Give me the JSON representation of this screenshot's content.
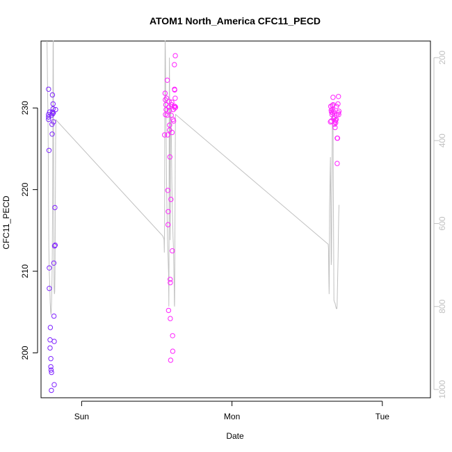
{
  "chart_data": {
    "type": "scatter",
    "title": "ATOM1 North_America CFC11_PECD",
    "xlabel": "Date",
    "ylabel": "CFC11_PECD",
    "x_unit": "days since Sat 00:00",
    "xlim": [
      0.73,
      3.32
    ],
    "ylim": [
      194.5,
      238.2
    ],
    "x_ticks": [
      {
        "value": 1,
        "label": "Sun"
      },
      {
        "value": 2,
        "label": "Mon"
      },
      {
        "value": 3,
        "label": "Tue"
      }
    ],
    "y_ticks": [
      200,
      210,
      220,
      230
    ],
    "y2_label": "",
    "y2_ticks": [
      200,
      400,
      600,
      800,
      1000
    ],
    "y2_lim": [
      1020,
      160
    ],
    "colors": {
      "early": "#7a22ff",
      "late": "#ff22ff",
      "line": "#c0c0c0",
      "axis": "#000000",
      "axis2": "#c0c0c0"
    },
    "points": [
      {
        "x": 0.78,
        "y": 232.3
      },
      {
        "x": 0.78,
        "y": 229.2
      },
      {
        "x": 0.78,
        "y": 228.6
      },
      {
        "x": 0.78,
        "y": 228.9
      },
      {
        "x": 0.783,
        "y": 224.8
      },
      {
        "x": 0.785,
        "y": 210.4
      },
      {
        "x": 0.785,
        "y": 207.9
      },
      {
        "x": 0.787,
        "y": 229.5
      },
      {
        "x": 0.79,
        "y": 201.6
      },
      {
        "x": 0.79,
        "y": 200.6
      },
      {
        "x": 0.792,
        "y": 203.1
      },
      {
        "x": 0.795,
        "y": 199.3
      },
      {
        "x": 0.795,
        "y": 198.3
      },
      {
        "x": 0.797,
        "y": 197.9
      },
      {
        "x": 0.799,
        "y": 195.4
      },
      {
        "x": 0.8,
        "y": 197.6
      },
      {
        "x": 0.8,
        "y": 229.1
      },
      {
        "x": 0.803,
        "y": 228.0
      },
      {
        "x": 0.804,
        "y": 226.8
      },
      {
        "x": 0.806,
        "y": 229.5
      },
      {
        "x": 0.806,
        "y": 231.6
      },
      {
        "x": 0.808,
        "y": 229.3
      },
      {
        "x": 0.81,
        "y": 229.9
      },
      {
        "x": 0.81,
        "y": 230.5
      },
      {
        "x": 0.812,
        "y": 229.4
      },
      {
        "x": 0.813,
        "y": 228.3
      },
      {
        "x": 0.815,
        "y": 211.0
      },
      {
        "x": 0.816,
        "y": 204.5
      },
      {
        "x": 0.818,
        "y": 201.4
      },
      {
        "x": 0.818,
        "y": 196.1
      },
      {
        "x": 0.82,
        "y": 213.1
      },
      {
        "x": 0.822,
        "y": 217.8
      },
      {
        "x": 0.824,
        "y": 213.2
      },
      {
        "x": 0.827,
        "y": 229.8
      },
      {
        "x": 1.552,
        "y": 226.7
      },
      {
        "x": 1.555,
        "y": 231.8
      },
      {
        "x": 1.557,
        "y": 231.0
      },
      {
        "x": 1.558,
        "y": 229.2
      },
      {
        "x": 1.56,
        "y": 230.4
      },
      {
        "x": 1.562,
        "y": 229.8
      },
      {
        "x": 1.565,
        "y": 231.2
      },
      {
        "x": 1.568,
        "y": 229.1
      },
      {
        "x": 1.57,
        "y": 233.4
      },
      {
        "x": 1.572,
        "y": 226.7
      },
      {
        "x": 1.573,
        "y": 219.9
      },
      {
        "x": 1.575,
        "y": 215.7
      },
      {
        "x": 1.576,
        "y": 217.3
      },
      {
        "x": 1.578,
        "y": 205.2
      },
      {
        "x": 1.58,
        "y": 230.1
      },
      {
        "x": 1.582,
        "y": 230.8
      },
      {
        "x": 1.584,
        "y": 229.7
      },
      {
        "x": 1.585,
        "y": 227.9
      },
      {
        "x": 1.585,
        "y": 227.3
      },
      {
        "x": 1.587,
        "y": 224.0
      },
      {
        "x": 1.589,
        "y": 209.0
      },
      {
        "x": 1.59,
        "y": 208.6
      },
      {
        "x": 1.59,
        "y": 204.2
      },
      {
        "x": 1.592,
        "y": 199.1
      },
      {
        "x": 1.594,
        "y": 218.8
      },
      {
        "x": 1.596,
        "y": 229.1
      },
      {
        "x": 1.598,
        "y": 230.4
      },
      {
        "x": 1.6,
        "y": 230.7
      },
      {
        "x": 1.602,
        "y": 227.0
      },
      {
        "x": 1.603,
        "y": 212.5
      },
      {
        "x": 1.605,
        "y": 202.1
      },
      {
        "x": 1.606,
        "y": 200.2
      },
      {
        "x": 1.608,
        "y": 228.6
      },
      {
        "x": 1.61,
        "y": 229.8
      },
      {
        "x": 1.612,
        "y": 228.4
      },
      {
        "x": 1.615,
        "y": 230.2
      },
      {
        "x": 1.617,
        "y": 235.3
      },
      {
        "x": 1.618,
        "y": 232.3
      },
      {
        "x": 1.619,
        "y": 232.2
      },
      {
        "x": 1.62,
        "y": 230.2
      },
      {
        "x": 1.621,
        "y": 230.0
      },
      {
        "x": 1.622,
        "y": 231.2
      },
      {
        "x": 1.623,
        "y": 236.4
      },
      {
        "x": 1.625,
        "y": 230.1
      },
      {
        "x": 2.655,
        "y": 228.3
      },
      {
        "x": 2.657,
        "y": 230.2
      },
      {
        "x": 2.66,
        "y": 228.4
      },
      {
        "x": 2.66,
        "y": 229.7
      },
      {
        "x": 2.662,
        "y": 229.5
      },
      {
        "x": 2.665,
        "y": 229.2
      },
      {
        "x": 2.667,
        "y": 230.3
      },
      {
        "x": 2.668,
        "y": 229.8
      },
      {
        "x": 2.67,
        "y": 229.4
      },
      {
        "x": 2.672,
        "y": 231.3
      },
      {
        "x": 2.673,
        "y": 230.4
      },
      {
        "x": 2.674,
        "y": 229.6
      },
      {
        "x": 2.676,
        "y": 228.7
      },
      {
        "x": 2.68,
        "y": 228.9
      },
      {
        "x": 2.682,
        "y": 228.0
      },
      {
        "x": 2.684,
        "y": 228.3
      },
      {
        "x": 2.686,
        "y": 227.6
      },
      {
        "x": 2.688,
        "y": 228.5
      },
      {
        "x": 2.69,
        "y": 228.2
      },
      {
        "x": 2.693,
        "y": 228.6
      },
      {
        "x": 2.695,
        "y": 230.2
      },
      {
        "x": 2.697,
        "y": 229.1
      },
      {
        "x": 2.7,
        "y": 226.3
      },
      {
        "x": 2.7,
        "y": 223.2
      },
      {
        "x": 2.702,
        "y": 226.3
      },
      {
        "x": 2.705,
        "y": 230.5
      },
      {
        "x": 2.707,
        "y": 229.4
      },
      {
        "x": 2.708,
        "y": 231.4
      },
      {
        "x": 2.71,
        "y": 229.2
      },
      {
        "x": 2.712,
        "y": 229.6
      }
    ],
    "line_series": [
      {
        "x": 0.77,
        "y2": 160
      },
      {
        "x": 0.772,
        "y2": 225
      },
      {
        "x": 0.774,
        "y2": 290
      },
      {
        "x": 0.776,
        "y2": 330
      },
      {
        "x": 0.778,
        "y2": 430
      },
      {
        "x": 0.78,
        "y2": 560
      },
      {
        "x": 0.782,
        "y2": 655
      },
      {
        "x": 0.785,
        "y2": 718
      },
      {
        "x": 0.788,
        "y2": 745
      },
      {
        "x": 0.791,
        "y2": 790
      },
      {
        "x": 0.794,
        "y2": 812
      },
      {
        "x": 0.797,
        "y2": 820
      },
      {
        "x": 0.8,
        "y2": 790
      },
      {
        "x": 0.803,
        "y2": 735
      },
      {
        "x": 0.805,
        "y2": 675
      },
      {
        "x": 0.807,
        "y2": 560
      },
      {
        "x": 0.808,
        "y2": 460
      },
      {
        "x": 0.809,
        "y2": 300
      },
      {
        "x": 0.81,
        "y2": 170
      },
      {
        "x": 0.811,
        "y2": 160
      },
      {
        "x": 0.812,
        "y2": 160
      },
      {
        "x": 0.813,
        "y2": 420
      },
      {
        "x": 0.815,
        "y2": 610
      },
      {
        "x": 0.817,
        "y2": 755
      },
      {
        "x": 0.819,
        "y2": 770
      },
      {
        "x": 0.821,
        "y2": 765
      },
      {
        "x": 0.823,
        "y2": 720
      },
      {
        "x": 0.825,
        "y2": 590
      },
      {
        "x": 0.827,
        "y2": 400
      },
      {
        "x": 0.829,
        "y2": 350
      },
      {
        "x": 1.54,
        "y2": 630
      },
      {
        "x": 1.548,
        "y2": 638
      },
      {
        "x": 1.55,
        "y2": 670
      },
      {
        "x": 1.552,
        "y2": 600
      },
      {
        "x": 1.553,
        "y2": 390
      },
      {
        "x": 1.554,
        "y2": 250
      },
      {
        "x": 1.555,
        "y2": 160
      },
      {
        "x": 1.556,
        "y2": 160
      },
      {
        "x": 1.557,
        "y2": 180
      },
      {
        "x": 1.558,
        "y2": 220
      },
      {
        "x": 1.559,
        "y2": 280
      },
      {
        "x": 1.561,
        "y2": 350
      },
      {
        "x": 1.563,
        "y2": 420
      },
      {
        "x": 1.565,
        "y2": 500
      },
      {
        "x": 1.567,
        "y2": 560
      },
      {
        "x": 1.57,
        "y2": 610
      },
      {
        "x": 1.572,
        "y2": 650
      },
      {
        "x": 1.575,
        "y2": 680
      },
      {
        "x": 1.578,
        "y2": 720
      },
      {
        "x": 1.58,
        "y2": 800
      },
      {
        "x": 1.581,
        "y2": 730
      },
      {
        "x": 1.582,
        "y2": 500
      },
      {
        "x": 1.583,
        "y2": 300
      },
      {
        "x": 1.584,
        "y2": 200
      },
      {
        "x": 1.585,
        "y2": 270
      },
      {
        "x": 1.586,
        "y2": 400
      },
      {
        "x": 1.587,
        "y2": 500
      },
      {
        "x": 1.588,
        "y2": 600
      },
      {
        "x": 1.589,
        "y2": 640
      },
      {
        "x": 1.59,
        "y2": 560
      },
      {
        "x": 1.591,
        "y2": 310
      },
      {
        "x": 1.593,
        "y2": 330
      },
      {
        "x": 1.595,
        "y2": 360
      },
      {
        "x": 1.597,
        "y2": 400
      },
      {
        "x": 1.6,
        "y2": 500
      },
      {
        "x": 1.603,
        "y2": 560
      },
      {
        "x": 1.606,
        "y2": 600
      },
      {
        "x": 1.608,
        "y2": 630
      },
      {
        "x": 1.61,
        "y2": 650
      },
      {
        "x": 1.612,
        "y2": 680
      },
      {
        "x": 1.614,
        "y2": 720
      },
      {
        "x": 1.616,
        "y2": 760
      },
      {
        "x": 1.617,
        "y2": 795
      },
      {
        "x": 1.618,
        "y2": 800
      },
      {
        "x": 1.619,
        "y2": 780
      },
      {
        "x": 1.62,
        "y2": 700
      },
      {
        "x": 1.621,
        "y2": 600
      },
      {
        "x": 1.622,
        "y2": 500
      },
      {
        "x": 1.623,
        "y2": 400
      },
      {
        "x": 1.624,
        "y2": 340
      },
      {
        "x": 1.625,
        "y2": 337
      },
      {
        "x": 2.64,
        "y2": 650
      },
      {
        "x": 2.642,
        "y2": 660
      },
      {
        "x": 2.644,
        "y2": 720
      },
      {
        "x": 2.646,
        "y2": 770
      },
      {
        "x": 2.647,
        "y2": 745
      },
      {
        "x": 2.649,
        "y2": 560
      },
      {
        "x": 2.651,
        "y2": 520
      },
      {
        "x": 2.653,
        "y2": 475
      },
      {
        "x": 2.655,
        "y2": 440
      },
      {
        "x": 2.658,
        "y2": 600
      },
      {
        "x": 2.66,
        "y2": 700
      },
      {
        "x": 2.662,
        "y2": 690
      },
      {
        "x": 2.664,
        "y2": 540
      },
      {
        "x": 2.666,
        "y2": 430
      },
      {
        "x": 2.668,
        "y2": 350
      },
      {
        "x": 2.67,
        "y2": 310
      },
      {
        "x": 2.672,
        "y2": 330
      },
      {
        "x": 2.674,
        "y2": 500
      },
      {
        "x": 2.676,
        "y2": 650
      },
      {
        "x": 2.678,
        "y2": 785
      },
      {
        "x": 2.682,
        "y2": 790
      },
      {
        "x": 2.686,
        "y2": 792
      },
      {
        "x": 2.69,
        "y2": 800
      },
      {
        "x": 2.694,
        "y2": 805
      },
      {
        "x": 2.698,
        "y2": 805
      },
      {
        "x": 2.7,
        "y2": 790
      },
      {
        "x": 2.703,
        "y2": 730
      },
      {
        "x": 2.706,
        "y2": 680
      },
      {
        "x": 2.708,
        "y2": 620
      },
      {
        "x": 2.71,
        "y2": 580
      },
      {
        "x": 2.712,
        "y2": 555
      }
    ]
  }
}
